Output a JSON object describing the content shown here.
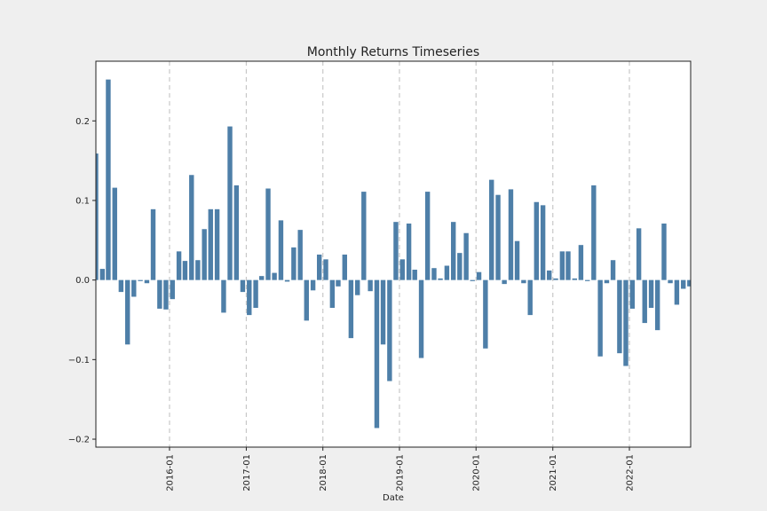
{
  "chart_data": {
    "type": "bar",
    "title": "Monthly Returns Timeseries",
    "xlabel": "Date",
    "ylabel": "",
    "ylim": [
      -0.21,
      0.275
    ],
    "xlim": [
      "2015-01-15",
      "2022-10-20"
    ],
    "grid": "x-only dashed",
    "bar_color": "#4e7fa8",
    "axes_bg": "#ffffff",
    "figure_bg": "#efefef",
    "yticks": [
      -0.2,
      -0.1,
      0.0,
      0.1,
      0.2
    ],
    "ytick_labels": [
      "−0.2",
      "−0.1",
      "0.0",
      "0.1",
      "0.2"
    ],
    "xticks": [
      "2016-01-01",
      "2017-01-01",
      "2018-01-01",
      "2019-01-01",
      "2020-01-01",
      "2021-01-01",
      "2022-01-01"
    ],
    "xtick_labels": [
      "2016-01",
      "2017-01",
      "2018-01",
      "2019-01",
      "2020-01",
      "2021-01",
      "2022-01"
    ],
    "series": [
      {
        "x": [
          "2015-01",
          "2015-02",
          "2015-03",
          "2015-04",
          "2015-05",
          "2015-06",
          "2015-07",
          "2015-08",
          "2015-09",
          "2015-10",
          "2015-11",
          "2015-12",
          "2016-01",
          "2016-02",
          "2016-03",
          "2016-04",
          "2016-05",
          "2016-06",
          "2016-07",
          "2016-08",
          "2016-09",
          "2016-10",
          "2016-11",
          "2016-12",
          "2017-01",
          "2017-02",
          "2017-03",
          "2017-04",
          "2017-05",
          "2017-06",
          "2017-07",
          "2017-08",
          "2017-09",
          "2017-10",
          "2017-11",
          "2017-12",
          "2018-01",
          "2018-02",
          "2018-03",
          "2018-04",
          "2018-05",
          "2018-06",
          "2018-07",
          "2018-08",
          "2018-09",
          "2018-10",
          "2018-11",
          "2018-12",
          "2019-01",
          "2019-02",
          "2019-03",
          "2019-04",
          "2019-05",
          "2019-06",
          "2019-07",
          "2019-08",
          "2019-09",
          "2019-10",
          "2019-11",
          "2019-12",
          "2020-01",
          "2020-02",
          "2020-03",
          "2020-04",
          "2020-05",
          "2020-06",
          "2020-07",
          "2020-08",
          "2020-09",
          "2020-10",
          "2020-11",
          "2020-12",
          "2021-01",
          "2021-02",
          "2021-03",
          "2021-04",
          "2021-05",
          "2021-06",
          "2021-07",
          "2021-08",
          "2021-09",
          "2021-10",
          "2021-11",
          "2021-12",
          "2022-01",
          "2022-02",
          "2022-03",
          "2022-04",
          "2022-05",
          "2022-06",
          "2022-07",
          "2022-08",
          "2022-09",
          "2022-10"
        ],
        "values": [
          0.159,
          0.014,
          0.252,
          0.116,
          -0.015,
          -0.081,
          -0.021,
          0.0,
          -0.004,
          0.089,
          -0.036,
          -0.037,
          -0.024,
          0.036,
          0.024,
          0.132,
          0.025,
          0.064,
          0.089,
          0.089,
          -0.041,
          0.193,
          0.119,
          -0.015,
          -0.044,
          -0.035,
          0.005,
          0.115,
          0.009,
          0.075,
          -0.002,
          0.041,
          0.063,
          -0.051,
          -0.013,
          0.032,
          0.026,
          -0.035,
          -0.008,
          0.032,
          -0.073,
          -0.019,
          0.111,
          -0.014,
          -0.186,
          -0.081,
          -0.127,
          0.073,
          0.026,
          0.071,
          0.013,
          -0.098,
          0.111,
          0.015,
          0.002,
          0.018,
          0.073,
          0.034,
          0.059,
          0.0,
          0.01,
          -0.086,
          0.126,
          0.107,
          -0.005,
          0.114,
          0.049,
          -0.004,
          -0.044,
          0.098,
          0.094,
          0.012,
          0.002,
          0.036,
          0.036,
          0.002,
          0.044,
          0.0,
          0.119,
          -0.096,
          -0.004,
          0.025,
          -0.092,
          -0.108,
          -0.036,
          0.065,
          -0.054,
          -0.035,
          -0.063,
          0.071,
          -0.004,
          -0.031,
          -0.011,
          -0.008
        ]
      }
    ]
  }
}
